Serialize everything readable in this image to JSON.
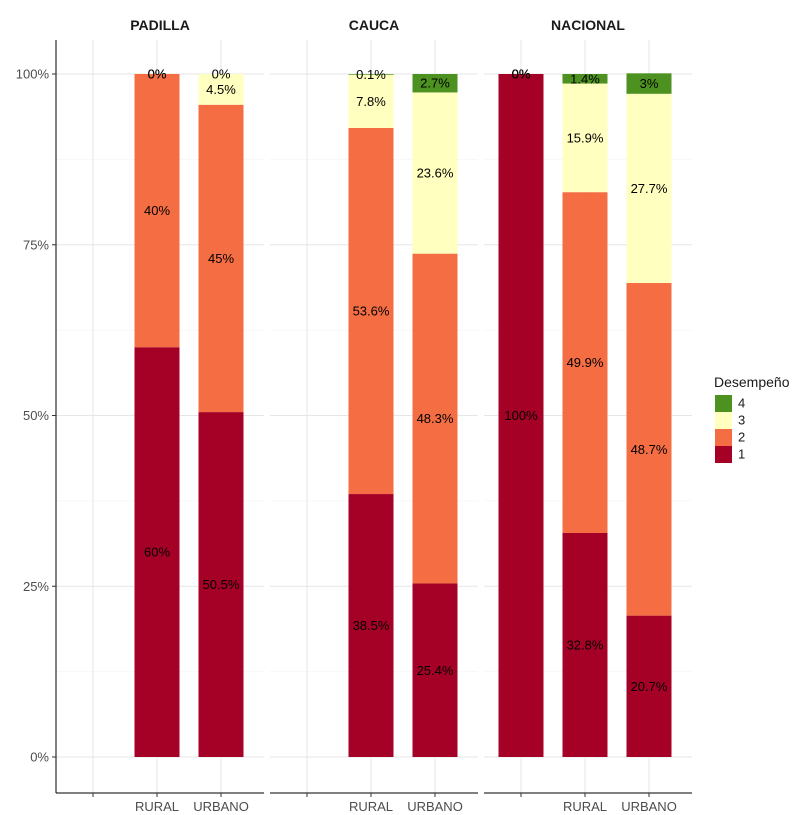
{
  "chart_data": {
    "type": "bar",
    "stacked": true,
    "percent_axis": true,
    "ylim": [
      0,
      1
    ],
    "y_ticks": [
      {
        "value": 0,
        "label": "0%"
      },
      {
        "value": 0.25,
        "label": "25%"
      },
      {
        "value": 0.5,
        "label": "50%"
      },
      {
        "value": 0.75,
        "label": "75%"
      },
      {
        "value": 1,
        "label": "100%"
      }
    ],
    "x_categories": [
      "",
      "RURAL",
      "URBANO"
    ],
    "grid": true,
    "legend": {
      "title": "Desempeño",
      "position": "right",
      "items": [
        {
          "label": "4",
          "color": "#4d9221"
        },
        {
          "label": "3",
          "color": "#ffffbf"
        },
        {
          "label": "2",
          "color": "#f46d43"
        },
        {
          "label": "1",
          "color": "#a50026"
        }
      ]
    },
    "levels": [
      "1",
      "2",
      "3",
      "4"
    ],
    "colors": {
      "1": "#a50026",
      "2": "#f46d43",
      "3": "#ffffbf",
      "4": "#4d9221"
    },
    "panels": [
      {
        "title": "PADILLA",
        "bars": [
          {
            "category": "RURAL",
            "values": [
              0.6,
              0.4,
              0.0,
              0.0
            ],
            "labels": [
              "60%",
              "40%",
              "0%",
              "0%"
            ]
          },
          {
            "category": "URBANO",
            "values": [
              0.505,
              0.45,
              0.045,
              0.0
            ],
            "labels": [
              "50.5%",
              "45%",
              "4.5%",
              "0%"
            ]
          }
        ]
      },
      {
        "title": "CAUCA",
        "bars": [
          {
            "category": "RURAL",
            "values": [
              0.385,
              0.536,
              0.078,
              0.001
            ],
            "labels": [
              "38.5%",
              "53.6%",
              "7.8%",
              "0.1%"
            ]
          },
          {
            "category": "URBANO",
            "values": [
              0.254,
              0.483,
              0.236,
              0.027
            ],
            "labels": [
              "25.4%",
              "48.3%",
              "23.6%",
              "2.7%"
            ]
          }
        ]
      },
      {
        "title": "NACIONAL",
        "bars": [
          {
            "category": "",
            "values": [
              1.0,
              0.0,
              0.0,
              0.0
            ],
            "labels": [
              "100%",
              "0%",
              "0%",
              "0%"
            ]
          },
          {
            "category": "RURAL",
            "values": [
              0.328,
              0.499,
              0.159,
              0.014
            ],
            "labels": [
              "32.8%",
              "49.9%",
              "15.9%",
              "1.4%"
            ]
          },
          {
            "category": "URBANO",
            "values": [
              0.207,
              0.487,
              0.277,
              0.03
            ],
            "labels": [
              "20.7%",
              "48.7%",
              "27.7%",
              "3%"
            ]
          }
        ]
      }
    ]
  }
}
